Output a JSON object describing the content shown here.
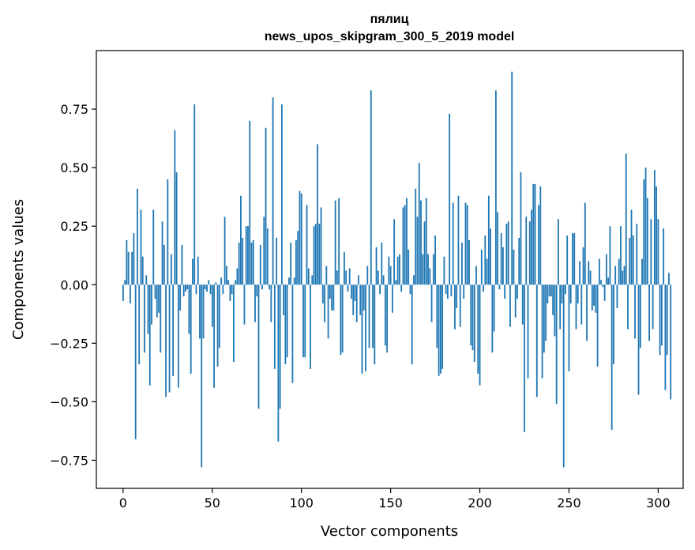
{
  "chart_data": {
    "type": "bar",
    "title": "пялиц",
    "subtitle": "news_upos_skipgram_300_5_2019 model",
    "xlabel": "Vector components",
    "ylabel": "Components values",
    "xlim": [
      -15,
      314
    ],
    "ylim": [
      -0.87,
      1.0
    ],
    "x_ticks": [
      0,
      50,
      100,
      150,
      200,
      250,
      300
    ],
    "y_ticks": [
      -0.75,
      -0.5,
      -0.25,
      0.0,
      0.25,
      0.5,
      0.75
    ],
    "x_tick_labels": [
      "0",
      "50",
      "100",
      "150",
      "200",
      "250",
      "300"
    ],
    "y_tick_labels": [
      "−0.75",
      "−0.50",
      "−0.25",
      "0.00",
      "0.25",
      "0.50",
      "0.75"
    ],
    "grid": false,
    "bar_color": "#1f77b4",
    "values": [
      -0.07,
      0.02,
      0.19,
      0.14,
      -0.08,
      0.14,
      0.22,
      -0.66,
      0.41,
      -0.34,
      0.32,
      0.12,
      -0.29,
      0.04,
      -0.21,
      -0.43,
      -0.17,
      0.32,
      -0.06,
      -0.14,
      -0.12,
      -0.29,
      0.27,
      0.17,
      -0.48,
      0.45,
      -0.46,
      0.13,
      -0.39,
      0.66,
      0.48,
      -0.44,
      -0.11,
      0.17,
      -0.05,
      -0.03,
      -0.02,
      -0.21,
      -0.38,
      0.11,
      0.77,
      -0.04,
      0.12,
      -0.23,
      -0.78,
      -0.23,
      -0.02,
      -0.03,
      0.02,
      -0.04,
      -0.18,
      -0.44,
      0.01,
      -0.35,
      -0.27,
      0.03,
      -0.04,
      0.29,
      0.08,
      0.02,
      -0.07,
      -0.04,
      -0.33,
      0.02,
      0.07,
      0.18,
      0.38,
      0.2,
      -0.17,
      0.25,
      0.25,
      0.7,
      0.18,
      0.19,
      -0.16,
      -0.05,
      -0.53,
      0.17,
      -0.02,
      0.29,
      0.67,
      0.24,
      -0.02,
      -0.16,
      0.8,
      -0.36,
      0.2,
      -0.67,
      -0.53,
      0.77,
      -0.13,
      -0.34,
      -0.31,
      0.03,
      0.18,
      -0.42,
      0.03,
      0.19,
      0.23,
      0.4,
      0.39,
      -0.31,
      -0.31,
      0.34,
      0.07,
      -0.36,
      0.04,
      0.25,
      0.26,
      0.6,
      0.26,
      0.33,
      -0.08,
      -0.16,
      0.08,
      -0.23,
      -0.06,
      -0.11,
      -0.11,
      0.36,
      0.06,
      0.37,
      -0.3,
      -0.29,
      0.14,
      0.06,
      -0.03,
      0.07,
      -0.06,
      -0.13,
      -0.07,
      -0.16,
      0.04,
      -0.13,
      -0.38,
      -0.11,
      -0.37,
      0.08,
      -0.27,
      0.83,
      -0.27,
      -0.34,
      0.16,
      0.06,
      -0.04,
      0.18,
      0.04,
      -0.26,
      -0.29,
      0.12,
      0.08,
      -0.12,
      0.28,
      0.02,
      0.12,
      0.13,
      -0.03,
      0.33,
      0.34,
      0.37,
      0.15,
      -0.04,
      -0.34,
      0.04,
      0.41,
      0.29,
      0.52,
      0.36,
      0.13,
      0.27,
      0.37,
      0.13,
      0.07,
      -0.16,
      0.13,
      0.21,
      -0.27,
      -0.39,
      -0.38,
      -0.36,
      0.12,
      -0.04,
      -0.06,
      0.73,
      -0.05,
      0.35,
      -0.19,
      -0.1,
      0.38,
      -0.18,
      0.18,
      -0.06,
      0.35,
      0.34,
      0.19,
      -0.26,
      -0.28,
      -0.33,
      0.08,
      -0.38,
      -0.43,
      0.15,
      -0.03,
      0.21,
      0.11,
      0.38,
      0.24,
      -0.29,
      -0.2,
      0.83,
      0.31,
      -0.02,
      0.22,
      0.16,
      -0.06,
      0.26,
      0.27,
      -0.18,
      0.91,
      0.15,
      -0.14,
      -0.06,
      0.2,
      0.48,
      -0.17,
      -0.63,
      0.29,
      -0.4,
      0.27,
      0.32,
      0.43,
      0.43,
      -0.48,
      0.34,
      0.42,
      -0.4,
      -0.29,
      -0.24,
      -0.08,
      -0.05,
      -0.05,
      -0.13,
      -0.22,
      -0.51,
      0.28,
      -0.19,
      -0.08,
      -0.78,
      -0.04,
      0.21,
      -0.37,
      -0.08,
      0.22,
      0.22,
      -0.19,
      -0.08,
      0.1,
      -0.17,
      0.16,
      0.35,
      -0.24,
      0.1,
      0.06,
      -0.11,
      -0.09,
      -0.12,
      -0.35,
      0.11,
      0.02,
      -0.01,
      -0.07,
      0.13,
      0.03,
      0.25,
      -0.62,
      -0.34,
      0.08,
      -0.1,
      0.11,
      0.25,
      0.06,
      0.08,
      0.56,
      -0.19,
      0.2,
      0.32,
      0.21,
      -0.23,
      0.26,
      -0.47,
      -0.27,
      0.11,
      0.45,
      0.5,
      0.37,
      -0.24,
      0.28,
      -0.19,
      0.49,
      0.42,
      0.28,
      -0.3,
      -0.26,
      0.24,
      -0.45,
      -0.3,
      0.05,
      -0.49
    ]
  }
}
